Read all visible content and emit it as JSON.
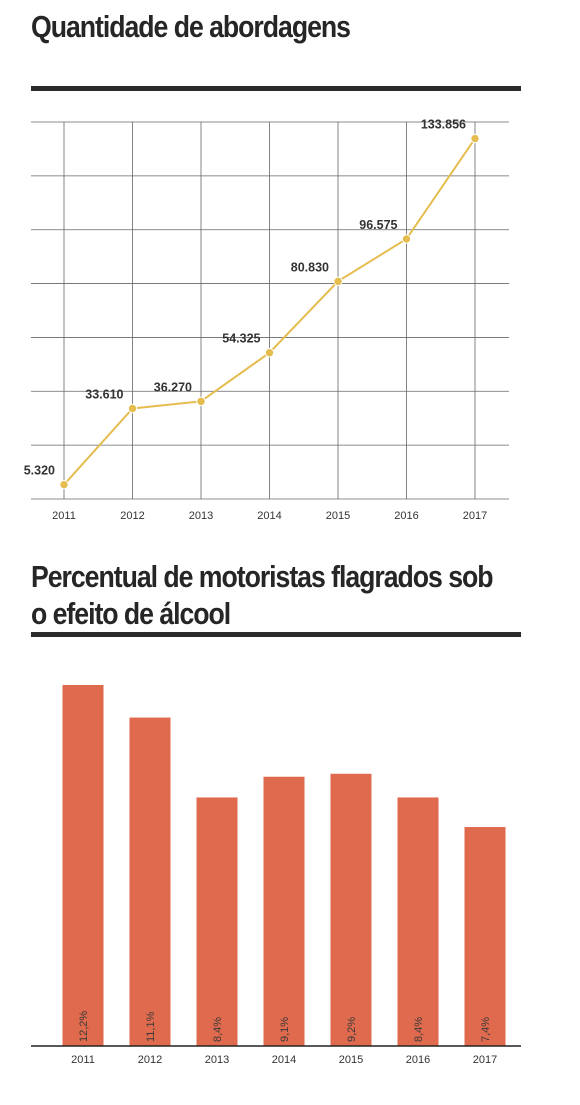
{
  "charts": {
    "line_title": "Quantidade de abordagens",
    "bar_title": "Percentual de motoristas flagrados sob o efeito de álcool"
  },
  "colors": {
    "line": "#e5bc4e",
    "grid": "#666666",
    "bar": "#e06a4e",
    "rule": "#2b2b2b"
  },
  "chart_data": [
    {
      "type": "line",
      "title": "Quantidade de abordagens",
      "x": [
        "2011",
        "2012",
        "2013",
        "2014",
        "2015",
        "2016",
        "2017"
      ],
      "series": [
        {
          "values": [
            5320,
            33610,
            36270,
            54325,
            80830,
            96575,
            133856
          ],
          "labels": [
            "5.320",
            "33.610",
            "36.270",
            "54.325",
            "80.830",
            "96.575",
            "133.856"
          ]
        }
      ],
      "ylim": [
        0,
        140000
      ],
      "grid": true,
      "xlabel": "",
      "ylabel": ""
    },
    {
      "type": "bar",
      "title": "Percentual de motoristas flagrados sob o efeito de álcool",
      "categories": [
        "2011",
        "2012",
        "2013",
        "2014",
        "2015",
        "2016",
        "2017"
      ],
      "values": [
        12.2,
        11.1,
        8.4,
        9.1,
        9.2,
        8.4,
        7.4
      ],
      "labels": [
        "12,2%",
        "11,1%",
        "8,4%",
        "9,1%",
        "9,2%",
        "8,4%",
        "7,4%"
      ],
      "grid": false,
      "xlabel": "",
      "ylabel": ""
    }
  ]
}
